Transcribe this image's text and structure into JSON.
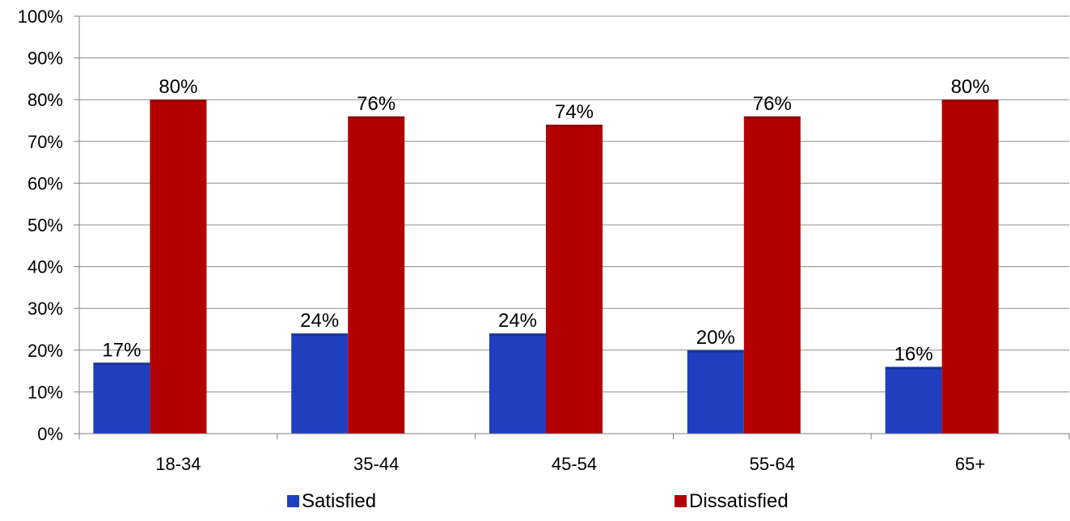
{
  "chart_data": {
    "type": "bar",
    "categories": [
      "18-34",
      "35-44",
      "45-54",
      "55-64",
      "65+"
    ],
    "series": [
      {
        "name": "Satisfied",
        "values": [
          17,
          24,
          24,
          20,
          16
        ],
        "labels": [
          "17%",
          "24%",
          "24%",
          "20%",
          "16%"
        ],
        "color": "#1f3fbf"
      },
      {
        "name": "Dissatisfied",
        "values": [
          80,
          76,
          74,
          76,
          80
        ],
        "labels": [
          "80%",
          "76%",
          "74%",
          "76%",
          "80%"
        ],
        "color": "#b30000"
      }
    ],
    "ylim": [
      0,
      100
    ],
    "yticks": [
      0,
      10,
      20,
      30,
      40,
      50,
      60,
      70,
      80,
      90,
      100
    ],
    "ytick_labels": [
      "0%",
      "10%",
      "20%",
      "30%",
      "40%",
      "50%",
      "60%",
      "70%",
      "80%",
      "90%",
      "100%"
    ],
    "grid": true,
    "legend_position": "bottom"
  }
}
